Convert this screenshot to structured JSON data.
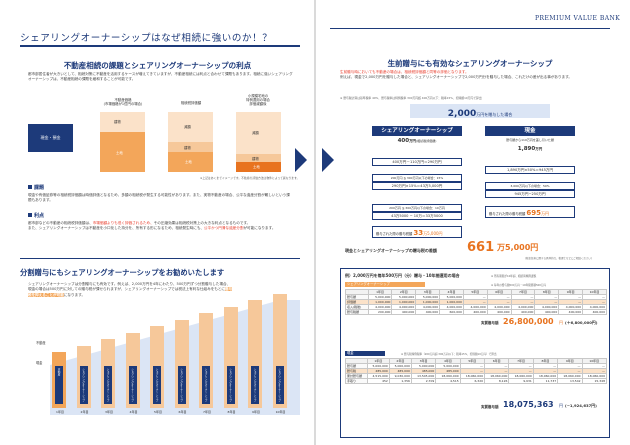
{
  "brand": "PREMIUM VALUE BANK",
  "main_title": "シェアリングオーナーシップはなぜ相続に強いのか！？",
  "left": {
    "sec1_title": "不動産相続の課題とシェアリングオーナーシップの利点",
    "sec1_body": "都市部居住者が大きいとして、相続対策に不動産を活用するケースが増えてきていますが、不動産相続には利点と合わせて課題もあります。相続に強いシェアリングオーナーシップは、不動産相続の課題を緩和することが可能です。",
    "chart": {
      "col_labels": [
        "不動産価格\n(市場価格が1億円の場合)",
        "相続税評価額",
        "小規模宅地の\n特例適用の場合\n評価減額後"
      ],
      "left_block_label": "現金・預金",
      "labels": {
        "building": "建物",
        "land": "土地",
        "reduce": "減額"
      },
      "note": "※上記はあくまでイメージです。不動産の評価方法は物件によって異なります。"
    },
    "issue_title": "課題",
    "issue_body": "現金や有価証券等の相続税評価額は時価評価となるため、多額の相続税が発生する可能性があります。また、実物不動産の場合、公平な遺産分割が難しいという課題もあります。",
    "merit_title": "利点",
    "merit_body_1": "都市部などの不動産の相続税評価額は、",
    "merit_body_hl": "市場価額よりも低く評価されるため、",
    "merit_body_2": "その圧縮効果は相続税対策上の大きな利点となるものです。",
    "merit_body_3": "また、シェアリングオーナーシップは不動産を小口化した持分を、所有する形になるため、相続発生時にも、",
    "merit_body_hl2": "公平かつ円滑な遺産分割",
    "merit_body_4": "が可能になります。",
    "sec2_title": "分割贈与にもシェアリングオーナーシップをお勧めいたします",
    "sec2_body_1": "シェアリングオーナーシップは分割贈与にも有効です。例えば、2,000万円を4年にわたり、500万円ずつ分割贈与した場合、現金の場合は500万円に対しての贈与税が課せられますが、シェアリングオーナーシップでは",
    "sec2_body_2": "税法上有利な仕組みをもとに",
    "sec2_body_hl": "贈与税を抑えることが可能",
    "sec2_body_3": "になります。",
    "gift_chart": {
      "years": [
        "1年目",
        "2年目",
        "3年目",
        "4年目",
        "5年目",
        "6年目",
        "7年目",
        "8年目",
        "9年目",
        "10年目"
      ],
      "side_label_top": "不動産",
      "side_label_bottom": "現金",
      "bar_label": "シェアリングオーナーシップ",
      "year1_label": "不動産"
    }
  },
  "right": {
    "sec_title": "生前贈与にも有効なシェアリングオーナーシップ",
    "body_hl1": "生前贈与時においても不動産の場合は、",
    "body_hl2": "相続税評価額と同等の評価となります。",
    "body": "例えば、現金で2,000万円を贈与した場合と、シェアリングオーナーシップで2,000万円分を贈与した場合、これだけの差が出る事があります。",
    "note": "※ 贈与税計算は基準税率 40%、贈与税率は特例税率 300万円超 400万円以下：税率15%、控除額10万円で算出",
    "amount": "2,000",
    "amount_suffix": "万円を贈与した場合",
    "col_a": {
      "title": "シェアリングオーナーシップ",
      "v1": "400",
      "v1_unit": "万円",
      "v1_note": "(相続税評価額)",
      "v2": "400万円－110万円＝290万円",
      "v3": "200万円 ≦ 300万円以下の場合：15%",
      "v4": "290万円×15%＝43万5,000円",
      "v5": "200万円 ≦ 300万円以下の場合：10万円",
      "v6": "43万5000 − 10万＝33万5000",
      "result_label": "贈与された際の贈与税額",
      "result": "33",
      "result_unit": "万5,000円"
    },
    "col_b": {
      "title": "現金",
      "v1": "1,890",
      "v1_unit": "万円",
      "v1_note": "贈与額から110万円を差し引いた額",
      "v2": "1,890万円×50%＝945万円",
      "v3": "3,000万円以下の場合：50%",
      "v4": "945万円−250万円",
      "result_label": "贈与された際の贈与税額",
      "result": "695",
      "result_unit": "万円"
    },
    "diff_label": "現金とシェアリングオーナーシップの贈与税の差額",
    "diff_value": "661",
    "diff_unit": "万5,000円",
    "diff_note": "(税金負担に関する具体的な、税理士などにご相談ください)",
    "table_title": "例）2,000万円を毎年500万円（分）贈与・10年間運用の場合",
    "table_note": "※ 所有期間が10年超、相続時精算課税",
    "so_section": {
      "label": "シェアリングオーナーシップ",
      "note": "※ 毎年の贈与額500万円・10年間累積500万円",
      "headers": [
        "1年目",
        "2年目",
        "3年目",
        "4年目",
        "5年目",
        "6年目",
        "7年目",
        "8年目",
        "9年目",
        "10年目"
      ],
      "rows": [
        {
          "name": "贈与額",
          "values": [
            "5,000,000",
            "5,000,000",
            "5,000,000",
            "5,000,000",
            "—",
            "—",
            "—",
            "—",
            "—",
            "—"
          ]
        },
        {
          "name": "評価額",
          "values": [
            "1,000,000",
            "1,000,000",
            "1,000,000",
            "1,000,000",
            "—",
            "—",
            "—",
            "—",
            "—",
            "—"
          ]
        },
        {
          "name": "収入(税後)",
          "values": [
            "4,000,000",
            "4,000,000",
            "4,000,000",
            "4,000,000",
            "4,000,000",
            "4,000,000",
            "4,000,000",
            "4,000,000",
            "4,000,000",
            "4,000,000"
          ]
        },
        {
          "name": "贈与税額",
          "values": [
            "200,000",
            "400,000",
            "400,000",
            "600,000",
            "400,000",
            "400,000",
            "400,000",
            "400,000",
            "400,000",
            "400,000"
          ]
        }
      ],
      "total_label": "実質贈与額",
      "total_value": "26,800,000",
      "total_unit": "円",
      "total_diff": "(＋6,800,000円)"
    },
    "cash_section": {
      "label": "現金",
      "note": "※ 贈与税特例税率（200万円超 300万円以下：税率15%、控除額10万円）で算出",
      "rows": [
        {
          "name": "贈与額",
          "values": [
            "5,000,000",
            "5,000,000",
            "5,000,000",
            "5,000,000",
            "—",
            "—",
            "—",
            "—",
            "—",
            "—"
          ]
        },
        {
          "name": "贈与税",
          "values": [
            "485,000",
            "485,000",
            "485,000",
            "485,000",
            "—",
            "—",
            "—",
            "—",
            "—",
            "—"
          ]
        },
        {
          "name": "累計贈与額",
          "values": [
            "4,515,000",
            "9,030,000",
            "13,545,000",
            "18,060,000",
            "18,060,000",
            "18,060,000",
            "18,060,000",
            "18,060,000",
            "18,060,000",
            "18,060,000"
          ]
        },
        {
          "name": "手取り",
          "values": [
            "452",
            "1,356",
            "2,709",
            "4,515",
            "6,320",
            "8,126",
            "9,931",
            "11,737",
            "13,542",
            "15,348"
          ]
        }
      ],
      "total_label": "実質贈与額",
      "total_value": "18,075,363",
      "total_unit": "円",
      "total_diff": "(−1,924,637円)"
    }
  },
  "colors": {
    "navy": "#1d3a7a",
    "orange": "#e8731f",
    "peach": "#f6c89a",
    "light_orange": "#f3a65a",
    "band": "#fbe2c9"
  }
}
